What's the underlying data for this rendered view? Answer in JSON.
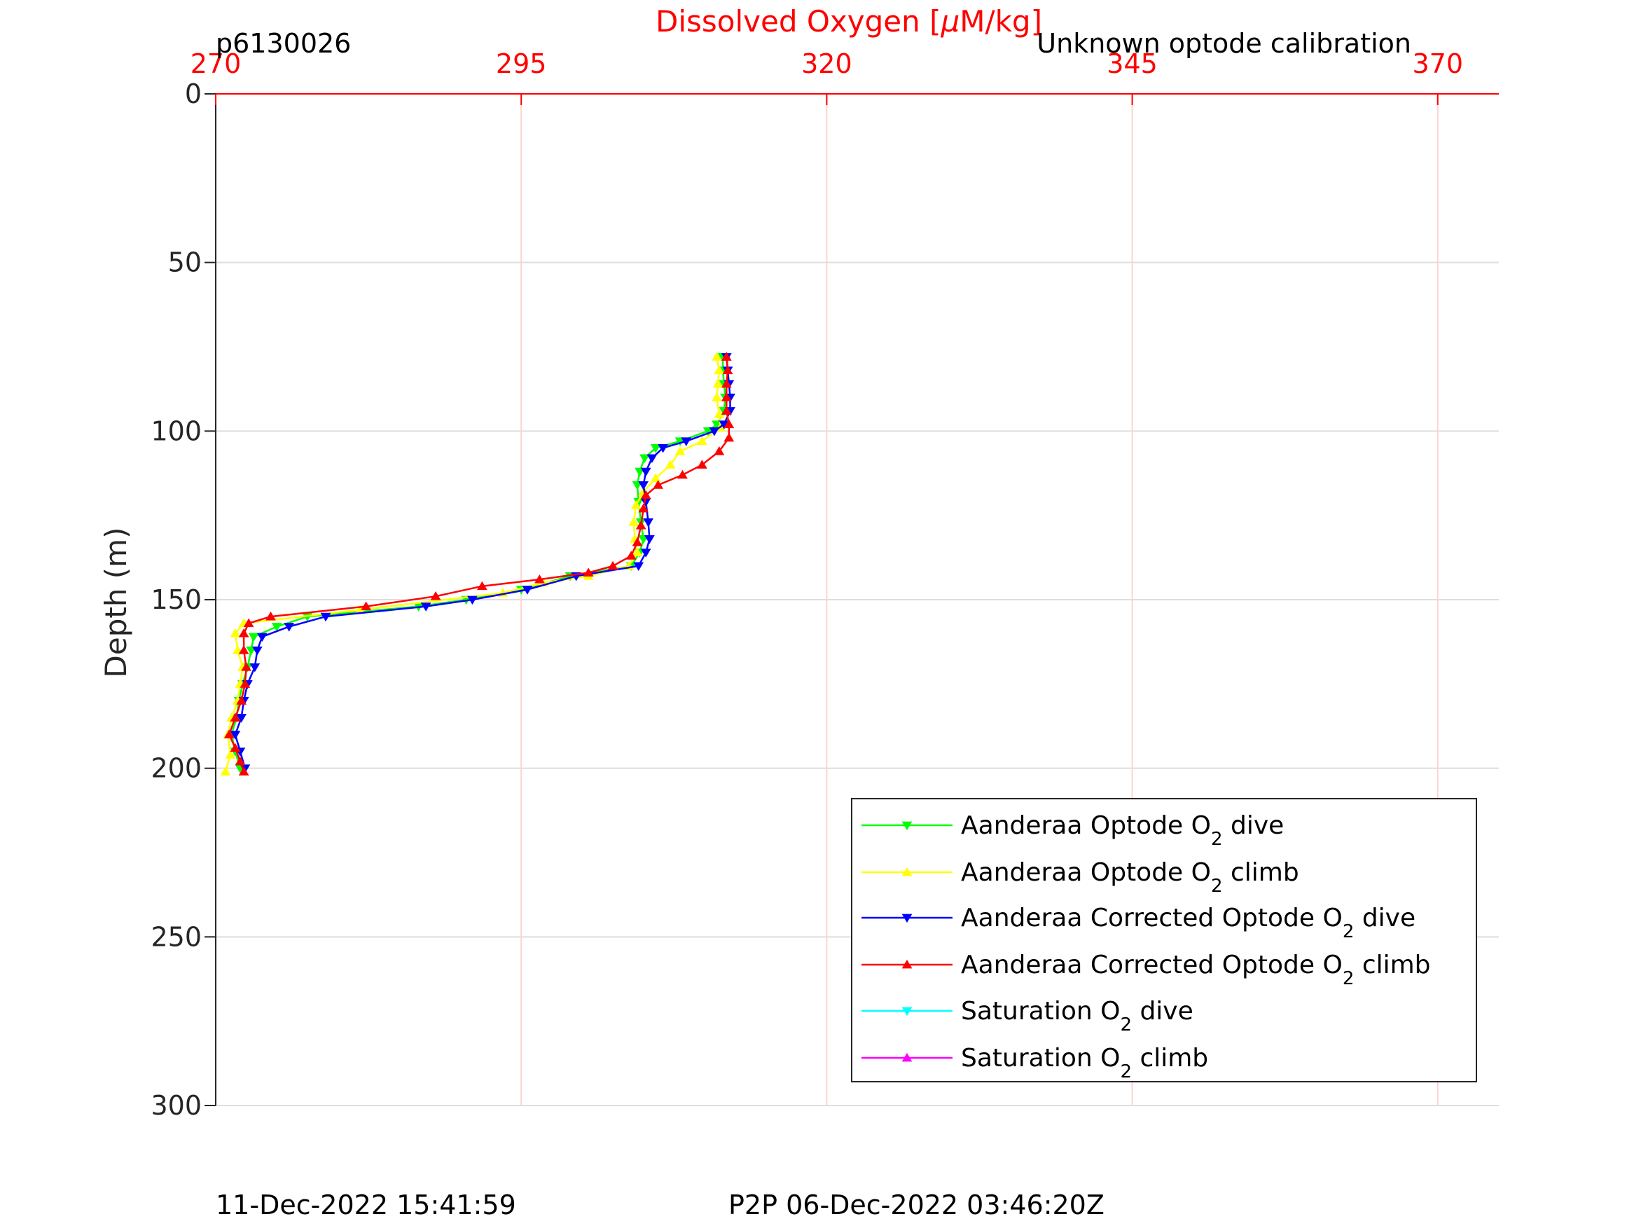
{
  "chart_data": {
    "type": "line",
    "corner_left": "p6130026",
    "corner_right": "Unknown optode calibration",
    "xlabel": {
      "pre": "Dissolved Oxygen [",
      "mu": "μ",
      "post": "M/kg]"
    },
    "ylabel": "Depth (m)",
    "xlim": [
      270,
      375
    ],
    "ylim": [
      0,
      300
    ],
    "y_reversed": true,
    "xticks": [
      270,
      295,
      320,
      345,
      370
    ],
    "yticks": [
      0,
      50,
      100,
      150,
      200,
      250,
      300
    ],
    "grid": true,
    "legend_position": "bottom-right",
    "axis_color": "#ff0000",
    "series": [
      {
        "name": "Aanderaa Optode O2 dive",
        "label_main": "Aanderaa Optode O",
        "label_sub": "2",
        "label_tail": " dive",
        "color": "#00ff00",
        "marker": "triangle-down",
        "points": [
          [
            311.5,
            78
          ],
          [
            311.5,
            82
          ],
          [
            311.6,
            86
          ],
          [
            311.7,
            90
          ],
          [
            311.6,
            94
          ],
          [
            311.0,
            98
          ],
          [
            310.3,
            100
          ],
          [
            308.0,
            103
          ],
          [
            306.0,
            105
          ],
          [
            305.1,
            108
          ],
          [
            304.7,
            112
          ],
          [
            304.5,
            116
          ],
          [
            304.6,
            121
          ],
          [
            304.8,
            127
          ],
          [
            305.0,
            132
          ],
          [
            304.7,
            136
          ],
          [
            304.0,
            140
          ],
          [
            299.0,
            143
          ],
          [
            295.0,
            147
          ],
          [
            290.5,
            150
          ],
          [
            286.6,
            152
          ],
          [
            277.5,
            155
          ],
          [
            275.0,
            158
          ],
          [
            273.1,
            161
          ],
          [
            272.9,
            165
          ],
          [
            272.6,
            170
          ],
          [
            272.2,
            175
          ],
          [
            271.9,
            180
          ],
          [
            271.7,
            185
          ],
          [
            271.3,
            190
          ],
          [
            271.6,
            195
          ],
          [
            272.0,
            200
          ]
        ]
      },
      {
        "name": "Aanderaa Optode O2 climb",
        "label_main": "Aanderaa Optode O",
        "label_sub": "2",
        "label_tail": " climb",
        "color": "#ffff00",
        "marker": "triangle-up",
        "points": [
          [
            270.8,
            201
          ],
          [
            271.2,
            196
          ],
          [
            271.0,
            190
          ],
          [
            271.3,
            185
          ],
          [
            271.8,
            180
          ],
          [
            272.0,
            175
          ],
          [
            272.2,
            170
          ],
          [
            271.8,
            165
          ],
          [
            271.6,
            160
          ],
          [
            272.3,
            157
          ],
          [
            281.8,
            153
          ],
          [
            293.5,
            148
          ],
          [
            296.8,
            145
          ],
          [
            300.5,
            143
          ],
          [
            303.8,
            140
          ],
          [
            304.5,
            136
          ],
          [
            304.3,
            132
          ],
          [
            304.2,
            127
          ],
          [
            304.4,
            122
          ],
          [
            305.0,
            118
          ],
          [
            306.0,
            114
          ],
          [
            307.2,
            110
          ],
          [
            308.0,
            106
          ],
          [
            309.8,
            103
          ],
          [
            311.3,
            99
          ],
          [
            311.2,
            95
          ],
          [
            311.0,
            90
          ],
          [
            311.1,
            86
          ],
          [
            311.2,
            82
          ],
          [
            311.0,
            78
          ]
        ]
      },
      {
        "name": "Aanderaa Corrected Optode O2 dive",
        "label_main": "Aanderaa Corrected Optode O",
        "label_sub": "2",
        "label_tail": " dive",
        "color": "#0000ff",
        "marker": "triangle-down",
        "points": [
          [
            311.8,
            78
          ],
          [
            311.9,
            82
          ],
          [
            312.0,
            86
          ],
          [
            312.1,
            90
          ],
          [
            312.1,
            94
          ],
          [
            311.6,
            98
          ],
          [
            310.8,
            100
          ],
          [
            308.5,
            103
          ],
          [
            306.6,
            105
          ],
          [
            305.7,
            108
          ],
          [
            305.2,
            112
          ],
          [
            305.0,
            116
          ],
          [
            305.2,
            121
          ],
          [
            305.4,
            127
          ],
          [
            305.5,
            132
          ],
          [
            305.2,
            136
          ],
          [
            304.6,
            140
          ],
          [
            299.5,
            143
          ],
          [
            295.5,
            147
          ],
          [
            291.0,
            150
          ],
          [
            287.2,
            152
          ],
          [
            279.0,
            155
          ],
          [
            276.0,
            158
          ],
          [
            273.8,
            161
          ],
          [
            273.4,
            165
          ],
          [
            273.2,
            170
          ],
          [
            272.6,
            175
          ],
          [
            272.3,
            180
          ],
          [
            272.1,
            185
          ],
          [
            271.6,
            190
          ],
          [
            272.0,
            195
          ],
          [
            272.4,
            200
          ]
        ]
      },
      {
        "name": "Aanderaa Corrected Optode O2 climb",
        "label_main": "Aanderaa Corrected Optode O",
        "label_sub": "2",
        "label_tail": " climb",
        "color": "#ff0000",
        "marker": "triangle-up",
        "points": [
          [
            272.3,
            201
          ],
          [
            272.0,
            198
          ],
          [
            271.6,
            194
          ],
          [
            271.1,
            190
          ],
          [
            271.6,
            185
          ],
          [
            272.1,
            180
          ],
          [
            272.4,
            175
          ],
          [
            272.5,
            170
          ],
          [
            272.3,
            165
          ],
          [
            272.3,
            160
          ],
          [
            272.7,
            157
          ],
          [
            274.5,
            155
          ],
          [
            282.3,
            152
          ],
          [
            288.0,
            149
          ],
          [
            291.8,
            146
          ],
          [
            296.5,
            144
          ],
          [
            300.5,
            142
          ],
          [
            302.5,
            140
          ],
          [
            304.0,
            137
          ],
          [
            304.5,
            133
          ],
          [
            304.8,
            128
          ],
          [
            305.0,
            123
          ],
          [
            305.2,
            119
          ],
          [
            306.2,
            116
          ],
          [
            308.2,
            113
          ],
          [
            309.8,
            110
          ],
          [
            311.2,
            106
          ],
          [
            312.0,
            102
          ],
          [
            312.0,
            98
          ],
          [
            311.8,
            94
          ],
          [
            311.8,
            90
          ],
          [
            311.8,
            86
          ],
          [
            311.9,
            82
          ],
          [
            311.8,
            78
          ]
        ]
      },
      {
        "name": "Saturation O2 dive",
        "label_main": "Saturation O",
        "label_sub": "2",
        "label_tail": " dive",
        "color": "#00ffff",
        "marker": "triangle-down",
        "points": []
      },
      {
        "name": "Saturation O2 climb",
        "label_main": "Saturation O",
        "label_sub": "2",
        "label_tail": " climb",
        "color": "#ff00ff",
        "marker": "triangle-up",
        "points": []
      }
    ]
  },
  "footer": {
    "timestamp_left": "11-Dec-2022 15:41:59",
    "timestamp_right": "P2P 06-Dec-2022 03:46:20Z"
  }
}
